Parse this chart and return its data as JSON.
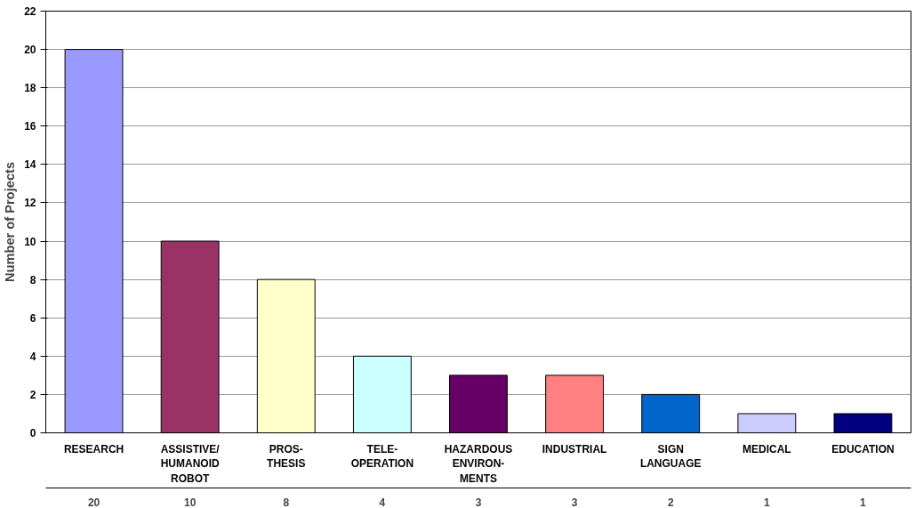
{
  "chart_data": {
    "type": "bar",
    "ylabel": "Number of Projects",
    "categories": [
      "RESEARCH",
      "ASSISTIVE/\nHUMANOID\nROBOT",
      "PROS-\nTHESIS",
      "TELE-\nOPERATION",
      "HAZARDOUS\nENVIRON-\nMENTS",
      "INDUSTRIAL",
      "SIGN\nLANGUAGE",
      "MEDICAL",
      "EDUCATION"
    ],
    "values": [
      20,
      10,
      8,
      4,
      3,
      3,
      2,
      1,
      1
    ],
    "colors": [
      "#9999ff",
      "#993366",
      "#ffffcc",
      "#ccffff",
      "#660066",
      "#ff8080",
      "#0066cc",
      "#ccccff",
      "#000080"
    ],
    "ylim": [
      0,
      22
    ],
    "yticks": [
      0,
      2,
      4,
      6,
      8,
      10,
      12,
      14,
      16,
      18,
      20,
      22
    ],
    "grid": "y",
    "data_labels": true
  }
}
